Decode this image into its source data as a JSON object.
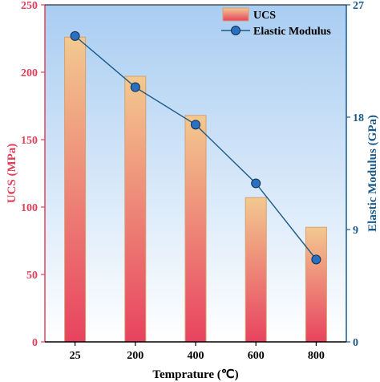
{
  "chart_data": {
    "type": "bar",
    "categories": [
      "25",
      "200",
      "400",
      "600",
      "800"
    ],
    "xlabel": "Temprature (℃)",
    "series": [
      {
        "name": "UCS",
        "type": "bar",
        "axis": "left",
        "values": [
          226,
          197,
          168,
          107,
          85
        ],
        "color_top": "#f3c98f",
        "color_bottom": "#e8435f"
      },
      {
        "name": "Elastic Modulus",
        "type": "line",
        "axis": "right",
        "values": [
          24.5,
          20.4,
          17.4,
          12.7,
          6.6
        ],
        "color": "#1a5a8a",
        "marker_color": "#2a6fc0"
      }
    ],
    "y_left": {
      "label": "UCS (MPa)",
      "ylim": [
        0,
        250
      ],
      "ticks": [
        0,
        50,
        100,
        150,
        200,
        250
      ],
      "color": "#e0405a"
    },
    "y_right": {
      "label": "Elastic Modulus (GPa)",
      "ylim": [
        0,
        27
      ],
      "ticks": [
        0,
        9,
        18,
        27
      ],
      "color": "#1a5a8a"
    },
    "legend_position": "top-right",
    "background_gradient": [
      "#ffffff",
      "#a9cdf2"
    ],
    "grid": false
  }
}
